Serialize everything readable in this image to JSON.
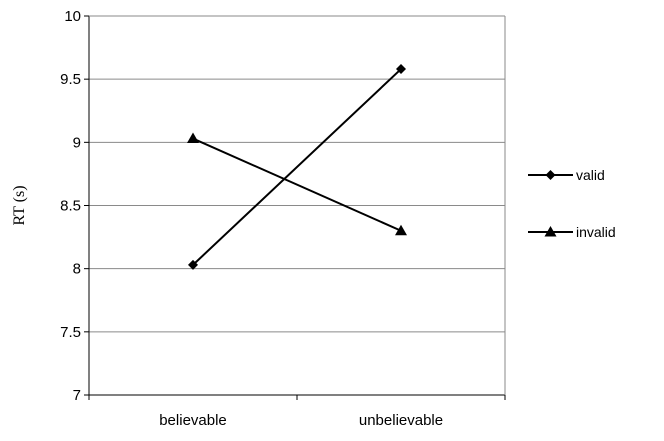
{
  "chart_data": {
    "type": "line",
    "title": "",
    "xlabel": "",
    "ylabel": "RT (s)",
    "categories": [
      "believable",
      "unbelievable"
    ],
    "ylim": [
      7,
      10
    ],
    "yticks": [
      7,
      7.5,
      8,
      8.5,
      9,
      9.5,
      10
    ],
    "ytick_labels": [
      "7",
      "7.5",
      "8",
      "8.5",
      "9",
      "9.5",
      "10"
    ],
    "grid": "horizontal",
    "legend_position": "right",
    "series": [
      {
        "name": "valid",
        "marker": "diamond",
        "color": "#000000",
        "values": [
          8.03,
          9.58
        ]
      },
      {
        "name": "invalid",
        "marker": "triangle",
        "color": "#000000",
        "values": [
          9.03,
          8.3
        ]
      }
    ]
  }
}
